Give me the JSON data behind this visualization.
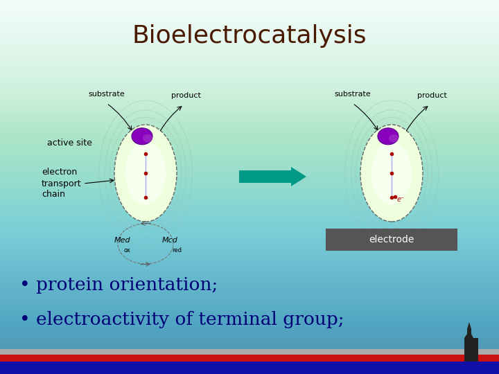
{
  "title": "Bioelectrocatalysis",
  "title_color": "#4a1a00",
  "title_fontsize": 26,
  "bg_color_top": "#FFFFFF",
  "bg_color_bottom": "#88EED8",
  "bullet1": "• protein orientation;",
  "bullet2": "• electroactivity of terminal group;",
  "bullet_color": "#000077",
  "bullet_fontsize": 19,
  "label_fontsize": 8,
  "label_color": "#000000",
  "arrow_color": "#009988",
  "electrode_bg": "#555555",
  "electrode_text": "#FFFFFF",
  "active_site_label": "active site",
  "electron_chain_label": "electron\ntransport\nchain",
  "substrate_label": "substrate",
  "product_label": "product",
  "med_ox_label": "Med",
  "med_red_label": "Mcd",
  "electrode_label": "electrode",
  "dot_color": "#AA0000",
  "blob_color": "#8800BB",
  "line_color": "#AAAAFF",
  "ellipse_face": "#EEFFDD",
  "ellipse_edge": "#666666",
  "outer_ellipse_face": "#CCEECC",
  "bar_blue": "#1111AA",
  "bar_red": "#CC1111",
  "bar_gray": "#AAAAAA"
}
